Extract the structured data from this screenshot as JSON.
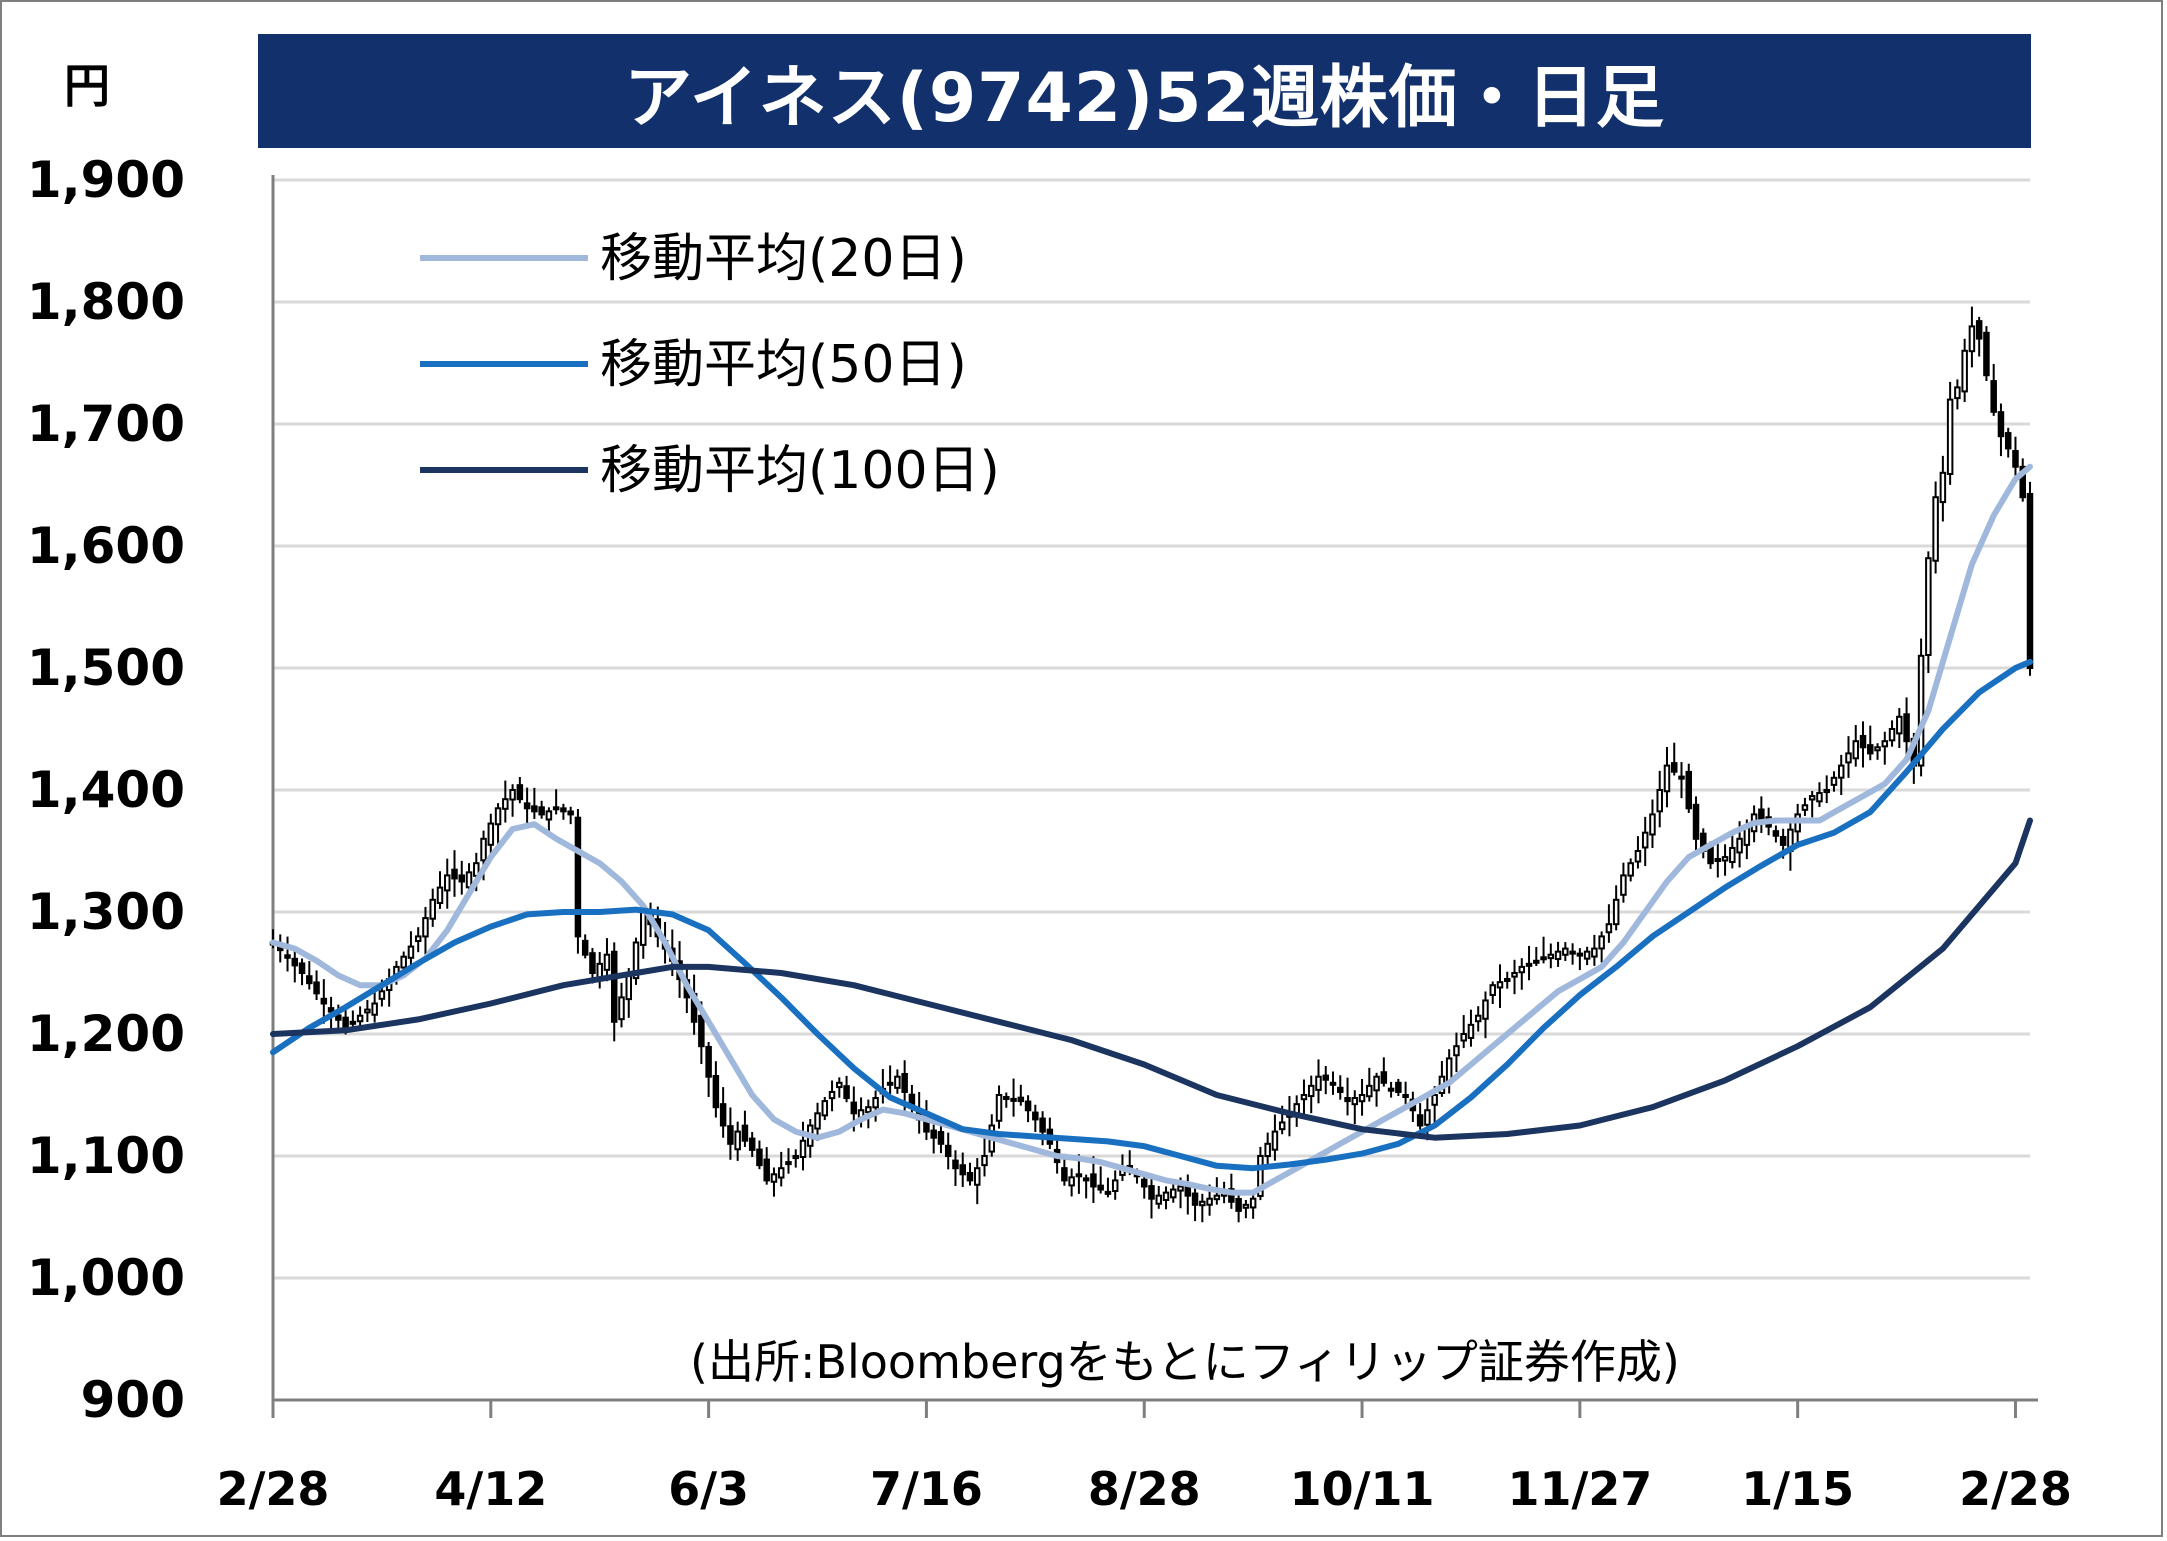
{
  "title": "アイネス(9742)52週株価・日足",
  "unit_label": "円",
  "source_note": "(出所:Bloombergをもとにフィリップ証券作成)",
  "colors": {
    "title_bg": "#12306b",
    "ma20": "#9fb8db",
    "ma50": "#1a70c0",
    "ma100": "#1b3560",
    "grid": "#d9d9d9",
    "candle": "#000000"
  },
  "chart_data": {
    "type": "line",
    "title": "アイネス(9742)52週株価・日足",
    "ylabel": "円",
    "ylim": [
      900,
      1900
    ],
    "yticks": [
      900,
      1000,
      1100,
      1200,
      1300,
      1400,
      1500,
      1600,
      1700,
      1800,
      1900
    ],
    "ytick_labels": [
      "900",
      "1,000",
      "1,100",
      "1,200",
      "1,300",
      "1,400",
      "1,500",
      "1,600",
      "1,700",
      "1,800",
      "1,900"
    ],
    "x_tick_labels": [
      "2/28",
      "4/12",
      "6/3",
      "7/16",
      "8/28",
      "10/11",
      "11/27",
      "1/15",
      "2/28"
    ],
    "x_tick_index": [
      0,
      30,
      60,
      90,
      120,
      150,
      180,
      210,
      240
    ],
    "legend": [
      "移動平均(20日)",
      "移動平均(50日)",
      "移動平均(100日)"
    ],
    "legend_position": "top-left",
    "grid": true,
    "price_path": [
      [
        0,
        1275
      ],
      [
        4,
        1250
      ],
      [
        7,
        1225
      ],
      [
        10,
        1205
      ],
      [
        14,
        1225
      ],
      [
        17,
        1255
      ],
      [
        20,
        1280
      ],
      [
        22,
        1310
      ],
      [
        24,
        1330
      ],
      [
        26,
        1325
      ],
      [
        28,
        1340
      ],
      [
        29,
        1360
      ],
      [
        31,
        1385
      ],
      [
        33,
        1400
      ],
      [
        35,
        1385
      ],
      [
        37,
        1380
      ],
      [
        39,
        1385
      ],
      [
        41,
        1380
      ],
      [
        42,
        1280
      ],
      [
        44,
        1250
      ],
      [
        46,
        1265
      ],
      [
        47,
        1210
      ],
      [
        49,
        1250
      ],
      [
        51,
        1300
      ],
      [
        53,
        1280
      ],
      [
        55,
        1260
      ],
      [
        57,
        1230
      ],
      [
        59,
        1190
      ],
      [
        61,
        1140
      ],
      [
        63,
        1110
      ],
      [
        64,
        1120
      ],
      [
        66,
        1105
      ],
      [
        68,
        1080
      ],
      [
        70,
        1090
      ],
      [
        72,
        1100
      ],
      [
        74,
        1125
      ],
      [
        76,
        1145
      ],
      [
        78,
        1160
      ],
      [
        80,
        1135
      ],
      [
        82,
        1140
      ],
      [
        84,
        1155
      ],
      [
        86,
        1165
      ],
      [
        88,
        1140
      ],
      [
        90,
        1120
      ],
      [
        92,
        1110
      ],
      [
        94,
        1090
      ],
      [
        96,
        1080
      ],
      [
        98,
        1100
      ],
      [
        100,
        1150
      ],
      [
        103,
        1145
      ],
      [
        105,
        1130
      ],
      [
        107,
        1110
      ],
      [
        109,
        1080
      ],
      [
        111,
        1085
      ],
      [
        113,
        1075
      ],
      [
        115,
        1070
      ],
      [
        117,
        1090
      ],
      [
        119,
        1085
      ],
      [
        121,
        1065
      ],
      [
        123,
        1070
      ],
      [
        125,
        1075
      ],
      [
        127,
        1060
      ],
      [
        129,
        1065
      ],
      [
        131,
        1070
      ],
      [
        133,
        1055
      ],
      [
        135,
        1065
      ],
      [
        136,
        1100
      ],
      [
        138,
        1120
      ],
      [
        140,
        1135
      ],
      [
        142,
        1150
      ],
      [
        144,
        1165
      ],
      [
        146,
        1160
      ],
      [
        148,
        1145
      ],
      [
        150,
        1150
      ],
      [
        152,
        1165
      ],
      [
        154,
        1155
      ],
      [
        156,
        1150
      ],
      [
        158,
        1125
      ],
      [
        160,
        1150
      ],
      [
        162,
        1180
      ],
      [
        164,
        1200
      ],
      [
        166,
        1215
      ],
      [
        168,
        1240
      ],
      [
        170,
        1245
      ],
      [
        172,
        1255
      ],
      [
        174,
        1260
      ],
      [
        176,
        1265
      ],
      [
        178,
        1270
      ],
      [
        180,
        1265
      ],
      [
        182,
        1270
      ],
      [
        184,
        1290
      ],
      [
        186,
        1330
      ],
      [
        188,
        1350
      ],
      [
        190,
        1380
      ],
      [
        192,
        1420
      ],
      [
        194,
        1410
      ],
      [
        196,
        1360
      ],
      [
        198,
        1340
      ],
      [
        200,
        1345
      ],
      [
        202,
        1360
      ],
      [
        204,
        1380
      ],
      [
        206,
        1370
      ],
      [
        208,
        1355
      ],
      [
        210,
        1380
      ],
      [
        212,
        1395
      ],
      [
        214,
        1400
      ],
      [
        216,
        1420
      ],
      [
        218,
        1440
      ],
      [
        220,
        1430
      ],
      [
        222,
        1440
      ],
      [
        224,
        1460
      ],
      [
        226,
        1420
      ],
      [
        227,
        1510
      ],
      [
        228,
        1590
      ],
      [
        229,
        1640
      ],
      [
        230,
        1660
      ],
      [
        231,
        1720
      ],
      [
        232,
        1730
      ],
      [
        233,
        1760
      ],
      [
        234,
        1780
      ],
      [
        235,
        1770
      ],
      [
        236,
        1740
      ],
      [
        237,
        1710
      ],
      [
        238,
        1690
      ],
      [
        239,
        1680
      ],
      [
        240,
        1665
      ],
      [
        241,
        1640
      ],
      [
        241.5,
        1590
      ],
      [
        242,
        1500
      ]
    ],
    "series": [
      {
        "name": "移動平均(20日)",
        "points": [
          [
            0,
            1275
          ],
          [
            3,
            1270
          ],
          [
            6,
            1260
          ],
          [
            9,
            1248
          ],
          [
            12,
            1240
          ],
          [
            15,
            1240
          ],
          [
            18,
            1248
          ],
          [
            21,
            1262
          ],
          [
            24,
            1285
          ],
          [
            27,
            1315
          ],
          [
            30,
            1345
          ],
          [
            33,
            1368
          ],
          [
            36,
            1372
          ],
          [
            39,
            1360
          ],
          [
            42,
            1350
          ],
          [
            45,
            1340
          ],
          [
            48,
            1325
          ],
          [
            51,
            1305
          ],
          [
            54,
            1275
          ],
          [
            57,
            1240
          ],
          [
            60,
            1210
          ],
          [
            63,
            1180
          ],
          [
            66,
            1150
          ],
          [
            69,
            1130
          ],
          [
            72,
            1120
          ],
          [
            75,
            1115
          ],
          [
            78,
            1120
          ],
          [
            81,
            1130
          ],
          [
            84,
            1138
          ],
          [
            87,
            1135
          ],
          [
            90,
            1130
          ],
          [
            93,
            1125
          ],
          [
            96,
            1120
          ],
          [
            99,
            1115
          ],
          [
            102,
            1110
          ],
          [
            105,
            1105
          ],
          [
            108,
            1100
          ],
          [
            111,
            1098
          ],
          [
            114,
            1095
          ],
          [
            117,
            1090
          ],
          [
            120,
            1085
          ],
          [
            123,
            1080
          ],
          [
            126,
            1077
          ],
          [
            129,
            1073
          ],
          [
            132,
            1070
          ],
          [
            135,
            1070
          ],
          [
            138,
            1080
          ],
          [
            141,
            1090
          ],
          [
            144,
            1100
          ],
          [
            147,
            1110
          ],
          [
            150,
            1120
          ],
          [
            153,
            1130
          ],
          [
            156,
            1140
          ],
          [
            159,
            1150
          ],
          [
            162,
            1160
          ],
          [
            165,
            1175
          ],
          [
            168,
            1190
          ],
          [
            171,
            1205
          ],
          [
            174,
            1220
          ],
          [
            177,
            1235
          ],
          [
            180,
            1245
          ],
          [
            183,
            1255
          ],
          [
            186,
            1275
          ],
          [
            189,
            1300
          ],
          [
            192,
            1325
          ],
          [
            195,
            1345
          ],
          [
            198,
            1355
          ],
          [
            201,
            1365
          ],
          [
            204,
            1373
          ],
          [
            207,
            1375
          ],
          [
            210,
            1375
          ],
          [
            213,
            1375
          ],
          [
            216,
            1385
          ],
          [
            219,
            1395
          ],
          [
            222,
            1405
          ],
          [
            225,
            1425
          ],
          [
            228,
            1465
          ],
          [
            231,
            1525
          ],
          [
            234,
            1585
          ],
          [
            237,
            1625
          ],
          [
            240,
            1655
          ],
          [
            242,
            1665
          ]
        ]
      },
      {
        "name": "移動平均(50日)",
        "points": [
          [
            0,
            1185
          ],
          [
            5,
            1205
          ],
          [
            10,
            1222
          ],
          [
            15,
            1240
          ],
          [
            20,
            1258
          ],
          [
            25,
            1275
          ],
          [
            30,
            1288
          ],
          [
            35,
            1298
          ],
          [
            40,
            1300
          ],
          [
            45,
            1300
          ],
          [
            50,
            1302
          ],
          [
            55,
            1298
          ],
          [
            60,
            1285
          ],
          [
            65,
            1258
          ],
          [
            70,
            1230
          ],
          [
            75,
            1200
          ],
          [
            80,
            1172
          ],
          [
            85,
            1148
          ],
          [
            90,
            1135
          ],
          [
            95,
            1122
          ],
          [
            100,
            1118
          ],
          [
            105,
            1116
          ],
          [
            110,
            1114
          ],
          [
            115,
            1112
          ],
          [
            120,
            1108
          ],
          [
            125,
            1100
          ],
          [
            130,
            1092
          ],
          [
            135,
            1090
          ],
          [
            140,
            1093
          ],
          [
            145,
            1097
          ],
          [
            150,
            1102
          ],
          [
            155,
            1110
          ],
          [
            160,
            1125
          ],
          [
            165,
            1148
          ],
          [
            170,
            1175
          ],
          [
            175,
            1205
          ],
          [
            180,
            1232
          ],
          [
            185,
            1255
          ],
          [
            190,
            1280
          ],
          [
            195,
            1300
          ],
          [
            200,
            1320
          ],
          [
            205,
            1338
          ],
          [
            210,
            1355
          ],
          [
            215,
            1365
          ],
          [
            220,
            1382
          ],
          [
            225,
            1415
          ],
          [
            230,
            1450
          ],
          [
            235,
            1480
          ],
          [
            240,
            1500
          ],
          [
            242,
            1505
          ]
        ]
      },
      {
        "name": "移動平均(100日)",
        "points": [
          [
            0,
            1200
          ],
          [
            10,
            1203
          ],
          [
            20,
            1212
          ],
          [
            30,
            1225
          ],
          [
            40,
            1240
          ],
          [
            50,
            1250
          ],
          [
            55,
            1255
          ],
          [
            60,
            1255
          ],
          [
            70,
            1250
          ],
          [
            80,
            1240
          ],
          [
            90,
            1225
          ],
          [
            100,
            1210
          ],
          [
            110,
            1195
          ],
          [
            120,
            1175
          ],
          [
            130,
            1150
          ],
          [
            140,
            1135
          ],
          [
            150,
            1122
          ],
          [
            160,
            1115
          ],
          [
            170,
            1118
          ],
          [
            180,
            1125
          ],
          [
            190,
            1140
          ],
          [
            200,
            1162
          ],
          [
            210,
            1190
          ],
          [
            220,
            1222
          ],
          [
            230,
            1270
          ],
          [
            240,
            1340
          ],
          [
            242,
            1375
          ]
        ]
      }
    ]
  }
}
